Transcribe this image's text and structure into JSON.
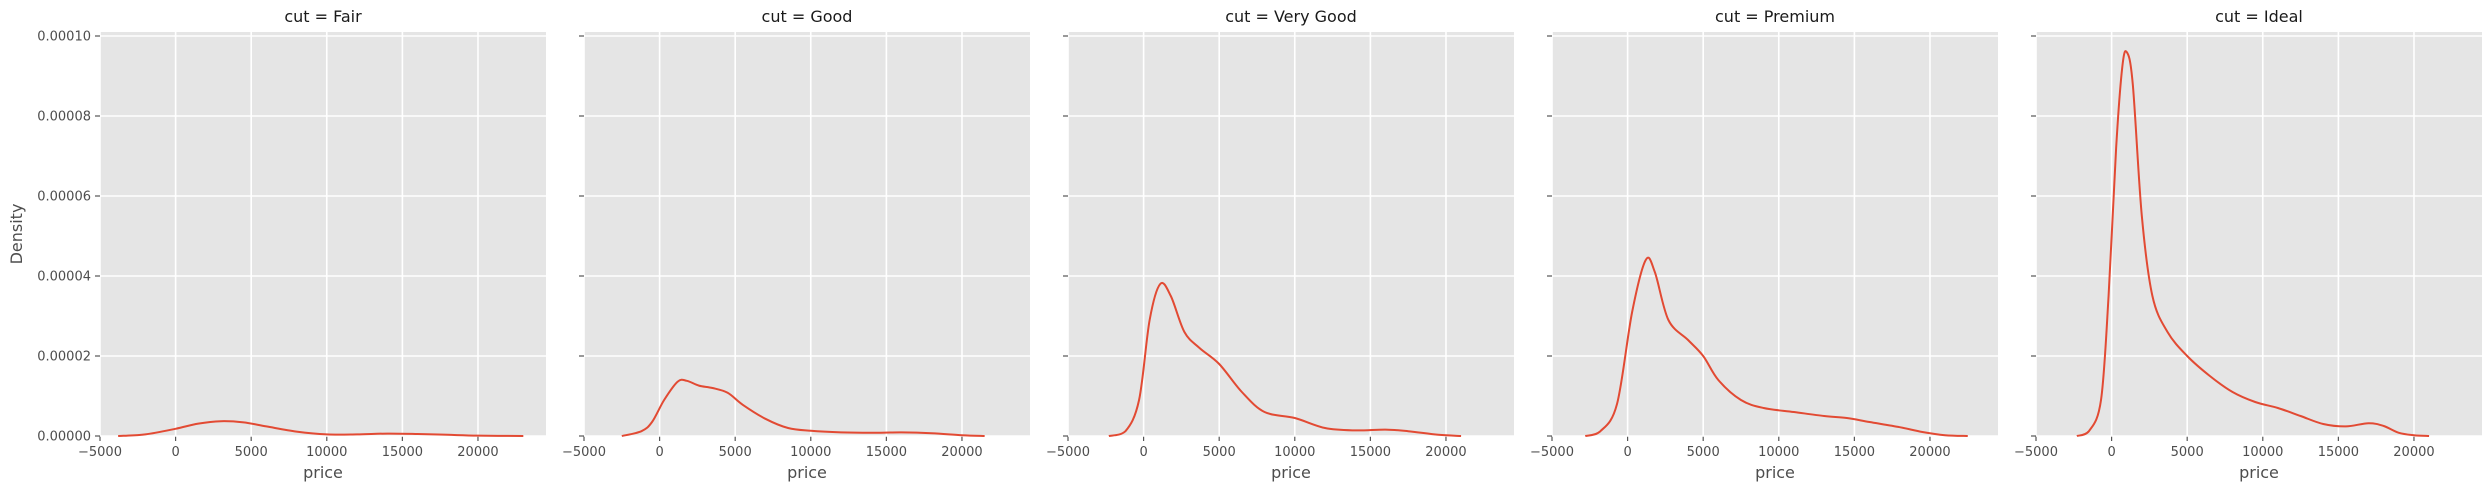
{
  "chart_data": {
    "type": "line",
    "kind": "kde facet grid",
    "y_axis_label": "Density",
    "y_ticks": [
      0.0,
      2e-05,
      4e-05,
      6e-05,
      8e-05,
      0.0001
    ],
    "y_tick_labels": [
      "0.00000",
      "0.00002",
      "0.00004",
      "0.00006",
      "0.00008",
      "0.00010"
    ],
    "ylim": [
      0,
      0.000101
    ],
    "x_ticks": [
      -5000,
      0,
      5000,
      10000,
      15000,
      20000
    ],
    "x_tick_labels": [
      "−5000",
      "0",
      "5000",
      "10000",
      "15000",
      "20000"
    ],
    "xlim": [
      -5000,
      24500
    ],
    "grid": true,
    "line_color": "#e24a33",
    "panels": [
      {
        "title": "cut = Fair",
        "xlabel": "price",
        "points": [
          [
            -3800,
            0.0
          ],
          [
            -2000,
            4e-07
          ],
          [
            0,
            1.8e-06
          ],
          [
            1500,
            3.1e-06
          ],
          [
            3000,
            3.7e-06
          ],
          [
            4500,
            3.4e-06
          ],
          [
            6000,
            2.4e-06
          ],
          [
            8000,
            1.1e-06
          ],
          [
            10000,
            4e-07
          ],
          [
            12000,
            4e-07
          ],
          [
            14000,
            6e-07
          ],
          [
            16000,
            5e-07
          ],
          [
            18000,
            3e-07
          ],
          [
            20000,
            1e-07
          ],
          [
            23000,
            0.0
          ]
        ]
      },
      {
        "title": "cut = Good",
        "xlabel": "price",
        "points": [
          [
            -2500,
            0.0
          ],
          [
            -1200,
            1.2e-06
          ],
          [
            -500,
            3.5e-06
          ],
          [
            300,
            9e-06
          ],
          [
            1200,
            1.36e-05
          ],
          [
            1800,
            1.38e-05
          ],
          [
            2600,
            1.26e-05
          ],
          [
            3500,
            1.2e-05
          ],
          [
            4500,
            1.08e-05
          ],
          [
            5500,
            7.8e-06
          ],
          [
            7000,
            4.3e-06
          ],
          [
            8500,
            2e-06
          ],
          [
            10000,
            1.3e-06
          ],
          [
            12000,
            9e-07
          ],
          [
            14000,
            8e-07
          ],
          [
            16000,
            9e-07
          ],
          [
            18000,
            7e-07
          ],
          [
            20000,
            2e-07
          ],
          [
            21500,
            0.0
          ]
        ]
      },
      {
        "title": "cut = Very Good",
        "xlabel": "price",
        "points": [
          [
            -2300,
            0.0
          ],
          [
            -1200,
            1.2e-06
          ],
          [
            -300,
            9e-06
          ],
          [
            400,
            2.9e-05
          ],
          [
            1100,
            3.8e-05
          ],
          [
            1800,
            3.5e-05
          ],
          [
            2700,
            2.6e-05
          ],
          [
            3700,
            2.2e-05
          ],
          [
            5000,
            1.8e-05
          ],
          [
            6500,
            1.1e-05
          ],
          [
            8000,
            6e-06
          ],
          [
            10000,
            4.5e-06
          ],
          [
            12000,
            2e-06
          ],
          [
            14000,
            1.4e-06
          ],
          [
            16000,
            1.6e-06
          ],
          [
            17500,
            1.2e-06
          ],
          [
            19500,
            3e-07
          ],
          [
            21000,
            0.0
          ]
        ]
      },
      {
        "title": "cut = Premium",
        "xlabel": "price",
        "points": [
          [
            -2800,
            0.0
          ],
          [
            -1800,
            1.2e-06
          ],
          [
            -700,
            8e-06
          ],
          [
            300,
            3.1e-05
          ],
          [
            1200,
            4.4e-05
          ],
          [
            1800,
            4.1e-05
          ],
          [
            2700,
            2.9e-05
          ],
          [
            4000,
            2.4e-05
          ],
          [
            5000,
            2e-05
          ],
          [
            6000,
            1.4e-05
          ],
          [
            7500,
            9e-06
          ],
          [
            9000,
            7e-06
          ],
          [
            11000,
            6e-06
          ],
          [
            13000,
            5e-06
          ],
          [
            14500,
            4.5e-06
          ],
          [
            16000,
            3.5e-06
          ],
          [
            18000,
            2.2e-06
          ],
          [
            19500,
            1e-06
          ],
          [
            21000,
            2e-07
          ],
          [
            22500,
            0.0
          ]
        ]
      },
      {
        "title": "cut = Ideal",
        "xlabel": "price",
        "points": [
          [
            -2300,
            0.0
          ],
          [
            -1500,
            1.2e-06
          ],
          [
            -700,
            9e-06
          ],
          [
            -200,
            3.5e-05
          ],
          [
            300,
            7.2e-05
          ],
          [
            700,
            9.2e-05
          ],
          [
            1000,
            9.6e-05
          ],
          [
            1400,
            8.8e-05
          ],
          [
            2000,
            5.5e-05
          ],
          [
            2700,
            3.5e-05
          ],
          [
            3700,
            2.6e-05
          ],
          [
            5000,
            2e-05
          ],
          [
            6500,
            1.5e-05
          ],
          [
            8000,
            1.1e-05
          ],
          [
            9500,
            8.5e-06
          ],
          [
            11000,
            7e-06
          ],
          [
            12500,
            5e-06
          ],
          [
            14000,
            3e-06
          ],
          [
            15500,
            2.4e-06
          ],
          [
            17000,
            3.2e-06
          ],
          [
            18000,
            2.5e-06
          ],
          [
            19000,
            8e-07
          ],
          [
            20000,
            2e-07
          ],
          [
            21000,
            0.0
          ]
        ]
      }
    ]
  }
}
